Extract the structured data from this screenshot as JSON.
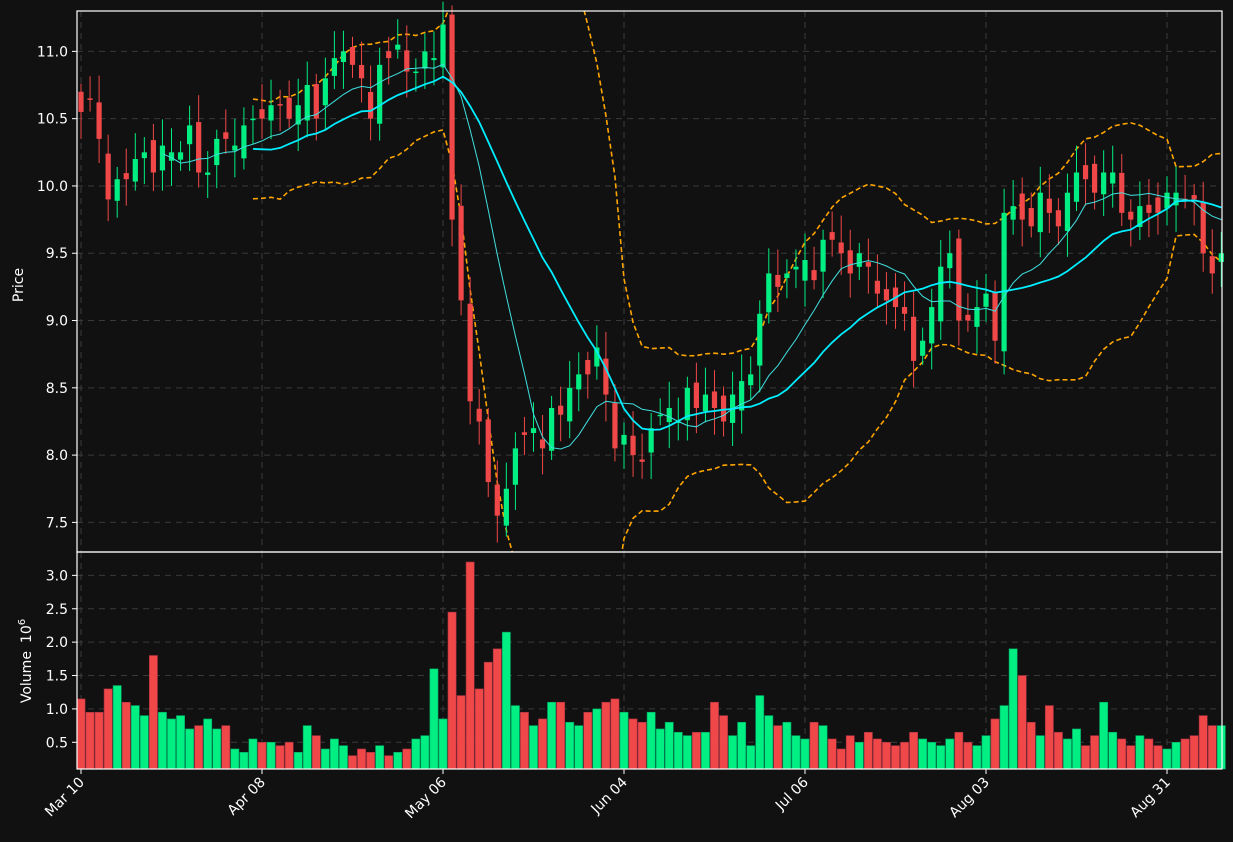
{
  "chart_data": {
    "type": "candlestick",
    "ylabel": "Price",
    "volume_ylabel": "Volume",
    "volume_exponent": "10",
    "volume_exponent_power": "6",
    "x_tick_labels": [
      "Mar 10",
      "Apr 08",
      "May 06",
      "Jun 04",
      "Jul 06",
      "Aug 03",
      "Aug 31"
    ],
    "x_tick_index": [
      0,
      20,
      40,
      60,
      80,
      100,
      120
    ],
    "price_ylim": [
      7.28,
      11.3
    ],
    "price_ticks": [
      7.5,
      8.0,
      8.5,
      9.0,
      9.5,
      10.0,
      10.5,
      11.0
    ],
    "volume_ylim": [
      0.1,
      3.35
    ],
    "volume_ticks": [
      "0.5",
      "1.0",
      "1.5",
      "2.0",
      "2.5",
      "3.0"
    ],
    "colors": {
      "up": "#00ee82",
      "down": "#f04848",
      "ma_fast": "#40e0e0",
      "ma_slow": "#00eeff",
      "bands": "#ffa500",
      "background": "#111111",
      "grid": "#3a3a3a"
    },
    "close_nodes": [
      [
        0,
        10.55
      ],
      [
        1,
        10.65
      ],
      [
        2,
        10.35
      ],
      [
        3,
        9.9
      ],
      [
        4,
        10.05
      ],
      [
        5,
        10.05
      ],
      [
        6,
        10.2
      ],
      [
        7,
        10.25
      ],
      [
        8,
        10.1
      ],
      [
        9,
        10.3
      ],
      [
        10,
        10.25
      ],
      [
        11,
        10.25
      ],
      [
        12,
        10.45
      ],
      [
        13,
        10.1
      ],
      [
        14,
        10.1
      ],
      [
        15,
        10.35
      ],
      [
        16,
        10.35
      ],
      [
        17,
        10.3
      ],
      [
        18,
        10.45
      ],
      [
        19,
        10.5
      ],
      [
        20,
        10.5
      ],
      [
        21,
        10.6
      ],
      [
        22,
        10.6
      ],
      [
        23,
        10.5
      ],
      [
        24,
        10.6
      ],
      [
        25,
        10.75
      ],
      [
        26,
        10.5
      ],
      [
        27,
        10.8
      ],
      [
        28,
        10.95
      ],
      [
        29,
        11.0
      ],
      [
        30,
        10.9
      ],
      [
        31,
        10.8
      ],
      [
        32,
        10.5
      ],
      [
        33,
        10.9
      ],
      [
        34,
        10.95
      ],
      [
        35,
        11.05
      ],
      [
        36,
        10.85
      ],
      [
        37,
        10.85
      ],
      [
        38,
        11.0
      ],
      [
        39,
        10.95
      ],
      [
        40,
        11.2
      ],
      [
        41,
        9.75
      ],
      [
        42,
        9.15
      ],
      [
        43,
        8.4
      ],
      [
        44,
        8.25
      ],
      [
        45,
        7.8
      ],
      [
        46,
        7.55
      ],
      [
        47,
        7.75
      ],
      [
        48,
        8.05
      ],
      [
        49,
        8.15
      ],
      [
        50,
        8.2
      ],
      [
        51,
        8.05
      ],
      [
        52,
        8.35
      ],
      [
        53,
        8.3
      ],
      [
        54,
        8.5
      ],
      [
        55,
        8.6
      ],
      [
        56,
        8.6
      ],
      [
        57,
        8.8
      ],
      [
        58,
        8.45
      ],
      [
        59,
        8.05
      ],
      [
        60,
        8.15
      ],
      [
        61,
        8.0
      ],
      [
        62,
        7.95
      ],
      [
        63,
        8.2
      ],
      [
        64,
        8.3
      ],
      [
        65,
        8.35
      ],
      [
        66,
        8.25
      ],
      [
        67,
        8.5
      ],
      [
        68,
        8.35
      ],
      [
        69,
        8.45
      ],
      [
        70,
        8.35
      ],
      [
        71,
        8.25
      ],
      [
        72,
        8.45
      ],
      [
        73,
        8.55
      ],
      [
        74,
        8.6
      ],
      [
        75,
        9.05
      ],
      [
        76,
        9.35
      ],
      [
        77,
        9.25
      ],
      [
        78,
        9.35
      ],
      [
        79,
        9.4
      ],
      [
        80,
        9.45
      ],
      [
        81,
        9.3
      ],
      [
        82,
        9.6
      ],
      [
        83,
        9.6
      ],
      [
        84,
        9.5
      ],
      [
        85,
        9.35
      ],
      [
        86,
        9.5
      ],
      [
        87,
        9.4
      ],
      [
        88,
        9.2
      ],
      [
        89,
        9.15
      ],
      [
        90,
        9.1
      ],
      [
        91,
        9.05
      ],
      [
        92,
        8.7
      ],
      [
        93,
        8.85
      ],
      [
        94,
        9.1
      ],
      [
        95,
        9.4
      ],
      [
        96,
        9.5
      ],
      [
        97,
        9.0
      ],
      [
        98,
        9.0
      ],
      [
        99,
        9.1
      ],
      [
        100,
        9.2
      ],
      [
        101,
        8.85
      ],
      [
        102,
        9.8
      ],
      [
        103,
        9.85
      ],
      [
        104,
        9.75
      ],
      [
        105,
        9.7
      ],
      [
        106,
        9.95
      ],
      [
        107,
        9.8
      ],
      [
        108,
        9.7
      ],
      [
        109,
        9.95
      ],
      [
        110,
        10.1
      ],
      [
        111,
        10.05
      ],
      [
        112,
        9.95
      ],
      [
        113,
        10.1
      ],
      [
        114,
        10.1
      ],
      [
        115,
        9.8
      ],
      [
        116,
        9.75
      ],
      [
        117,
        9.85
      ],
      [
        118,
        9.8
      ],
      [
        119,
        9.8
      ],
      [
        120,
        9.95
      ],
      [
        121,
        9.95
      ],
      [
        122,
        9.9
      ],
      [
        123,
        9.9
      ],
      [
        124,
        9.5
      ],
      [
        125,
        9.35
      ],
      [
        126,
        9.5
      ]
    ],
    "volume_nodes": [
      [
        0,
        1.15
      ],
      [
        1,
        0.95
      ],
      [
        2,
        0.95
      ],
      [
        3,
        1.3
      ],
      [
        4,
        1.35
      ],
      [
        5,
        1.1
      ],
      [
        6,
        1.05
      ],
      [
        7,
        0.9
      ],
      [
        8,
        1.8
      ],
      [
        9,
        0.95
      ],
      [
        10,
        0.85
      ],
      [
        11,
        0.9
      ],
      [
        12,
        0.7
      ],
      [
        13,
        0.75
      ],
      [
        14,
        0.85
      ],
      [
        15,
        0.7
      ],
      [
        16,
        0.75
      ],
      [
        17,
        0.4
      ],
      [
        18,
        0.35
      ],
      [
        19,
        0.55
      ],
      [
        20,
        0.5
      ],
      [
        21,
        0.5
      ],
      [
        22,
        0.45
      ],
      [
        23,
        0.5
      ],
      [
        24,
        0.35
      ],
      [
        25,
        0.75
      ],
      [
        26,
        0.6
      ],
      [
        27,
        0.4
      ],
      [
        28,
        0.55
      ],
      [
        29,
        0.45
      ],
      [
        30,
        0.3
      ],
      [
        31,
        0.4
      ],
      [
        32,
        0.35
      ],
      [
        33,
        0.45
      ],
      [
        34,
        0.3
      ],
      [
        35,
        0.35
      ],
      [
        36,
        0.4
      ],
      [
        37,
        0.55
      ],
      [
        38,
        0.6
      ],
      [
        39,
        1.6
      ],
      [
        40,
        0.85
      ],
      [
        41,
        2.45
      ],
      [
        42,
        1.2
      ],
      [
        43,
        3.2
      ],
      [
        44,
        1.3
      ],
      [
        45,
        1.7
      ],
      [
        46,
        1.9
      ],
      [
        47,
        2.15
      ],
      [
        48,
        1.05
      ],
      [
        49,
        0.95
      ],
      [
        50,
        0.75
      ],
      [
        51,
        0.85
      ],
      [
        52,
        1.1
      ],
      [
        53,
        1.1
      ],
      [
        54,
        0.8
      ],
      [
        55,
        0.75
      ],
      [
        56,
        0.95
      ],
      [
        57,
        1.0
      ],
      [
        58,
        1.1
      ],
      [
        59,
        1.15
      ],
      [
        60,
        0.95
      ],
      [
        61,
        0.85
      ],
      [
        62,
        0.8
      ],
      [
        63,
        0.95
      ],
      [
        64,
        0.7
      ],
      [
        65,
        0.8
      ],
      [
        66,
        0.65
      ],
      [
        67,
        0.6
      ],
      [
        68,
        0.65
      ],
      [
        69,
        0.65
      ],
      [
        70,
        1.1
      ],
      [
        71,
        0.9
      ],
      [
        72,
        0.6
      ],
      [
        73,
        0.8
      ],
      [
        74,
        0.45
      ],
      [
        75,
        1.2
      ],
      [
        76,
        0.9
      ],
      [
        77,
        0.75
      ],
      [
        78,
        0.8
      ],
      [
        79,
        0.6
      ],
      [
        80,
        0.55
      ],
      [
        81,
        0.8
      ],
      [
        82,
        0.75
      ],
      [
        83,
        0.55
      ],
      [
        84,
        0.4
      ],
      [
        85,
        0.6
      ],
      [
        86,
        0.5
      ],
      [
        87,
        0.65
      ],
      [
        88,
        0.55
      ],
      [
        89,
        0.5
      ],
      [
        90,
        0.45
      ],
      [
        91,
        0.5
      ],
      [
        92,
        0.65
      ],
      [
        93,
        0.55
      ],
      [
        94,
        0.5
      ],
      [
        95,
        0.45
      ],
      [
        96,
        0.55
      ],
      [
        97,
        0.65
      ],
      [
        98,
        0.5
      ],
      [
        99,
        0.45
      ],
      [
        100,
        0.6
      ],
      [
        101,
        0.85
      ],
      [
        102,
        1.05
      ],
      [
        103,
        1.9
      ],
      [
        104,
        1.5
      ],
      [
        105,
        0.8
      ],
      [
        106,
        0.6
      ],
      [
        107,
        1.05
      ],
      [
        108,
        0.65
      ],
      [
        109,
        0.55
      ],
      [
        110,
        0.7
      ],
      [
        111,
        0.45
      ],
      [
        112,
        0.6
      ],
      [
        113,
        1.1
      ],
      [
        114,
        0.65
      ],
      [
        115,
        0.55
      ],
      [
        116,
        0.45
      ],
      [
        117,
        0.6
      ],
      [
        118,
        0.55
      ],
      [
        119,
        0.45
      ],
      [
        120,
        0.4
      ],
      [
        121,
        0.5
      ],
      [
        122,
        0.55
      ],
      [
        123,
        0.6
      ],
      [
        124,
        0.9
      ],
      [
        125,
        0.75
      ],
      [
        126,
        0.75
      ]
    ],
    "count": 127
  }
}
